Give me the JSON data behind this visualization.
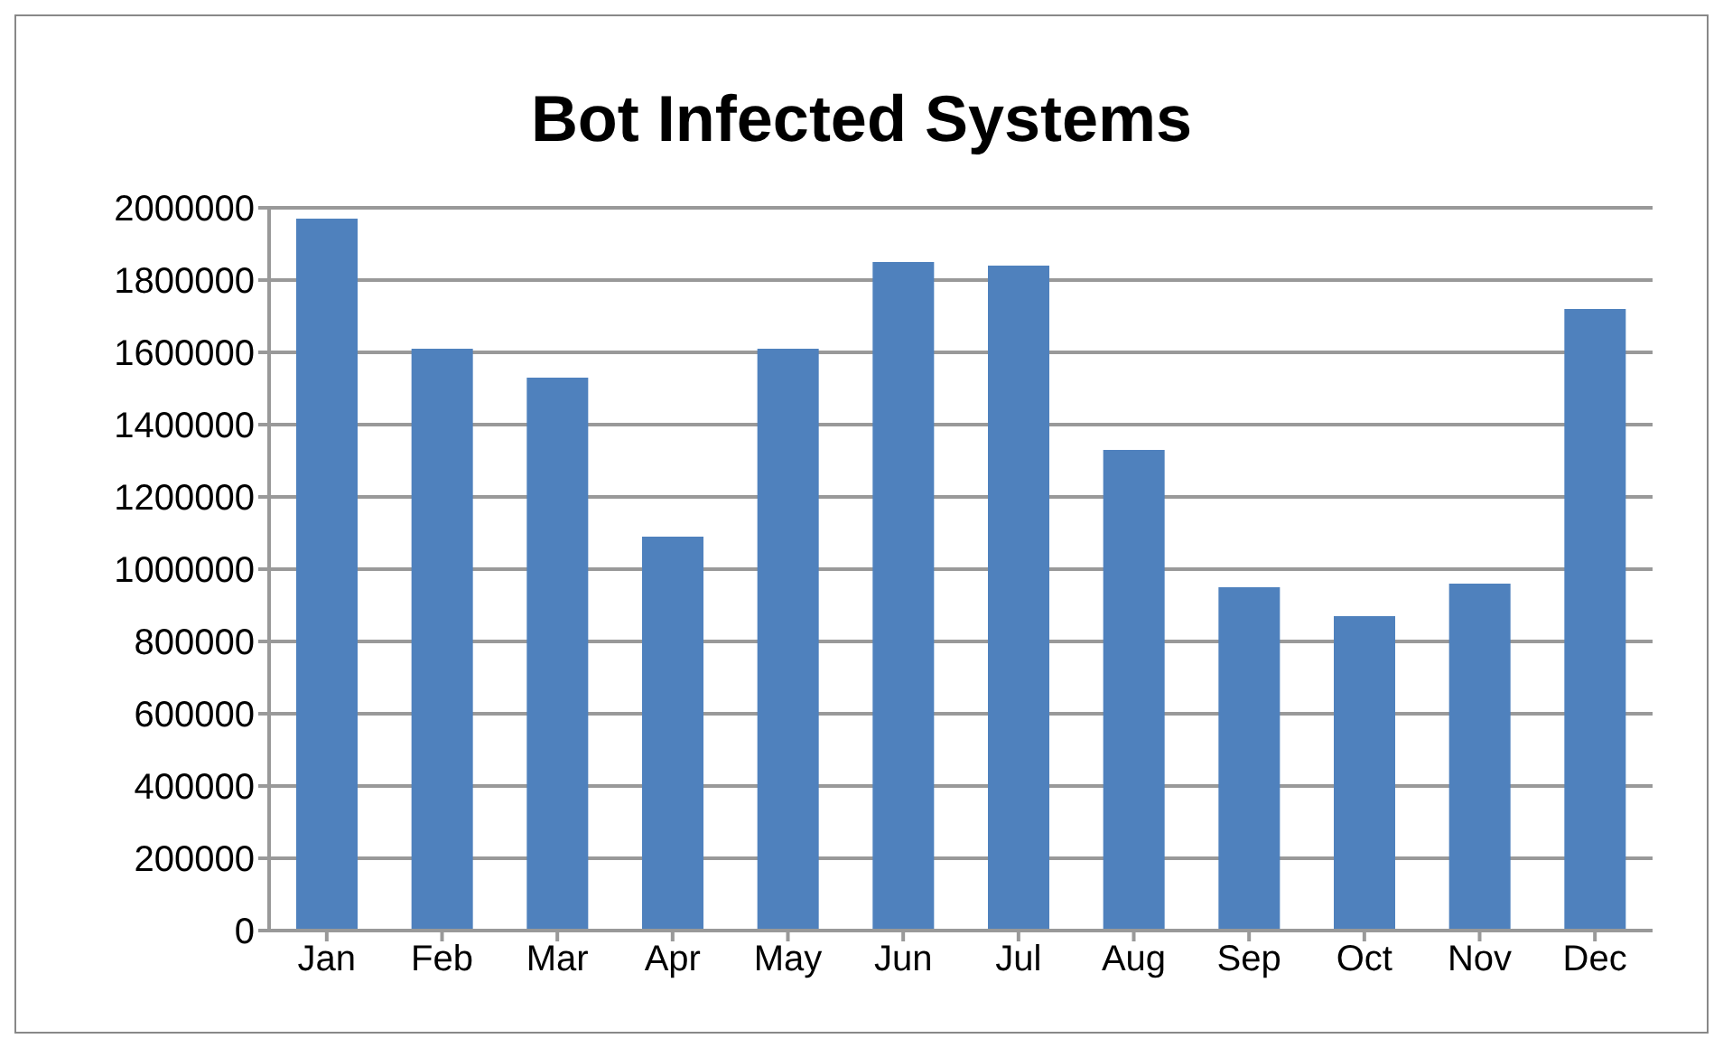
{
  "chart_data": {
    "type": "bar",
    "title": "Bot Infected Systems",
    "categories": [
      "Jan",
      "Feb",
      "Mar",
      "Apr",
      "May",
      "Jun",
      "Jul",
      "Aug",
      "Sep",
      "Oct",
      "Nov",
      "Dec"
    ],
    "values": [
      1970000,
      1610000,
      1530000,
      1090000,
      1610000,
      1850000,
      1840000,
      1330000,
      950000,
      870000,
      960000,
      1720000
    ],
    "color": "#4f81bd",
    "ylim": [
      0,
      2000000
    ],
    "yticks": [
      0,
      200000,
      400000,
      600000,
      800000,
      1000000,
      1200000,
      1400000,
      1600000,
      1800000,
      2000000
    ],
    "grid": "y"
  }
}
